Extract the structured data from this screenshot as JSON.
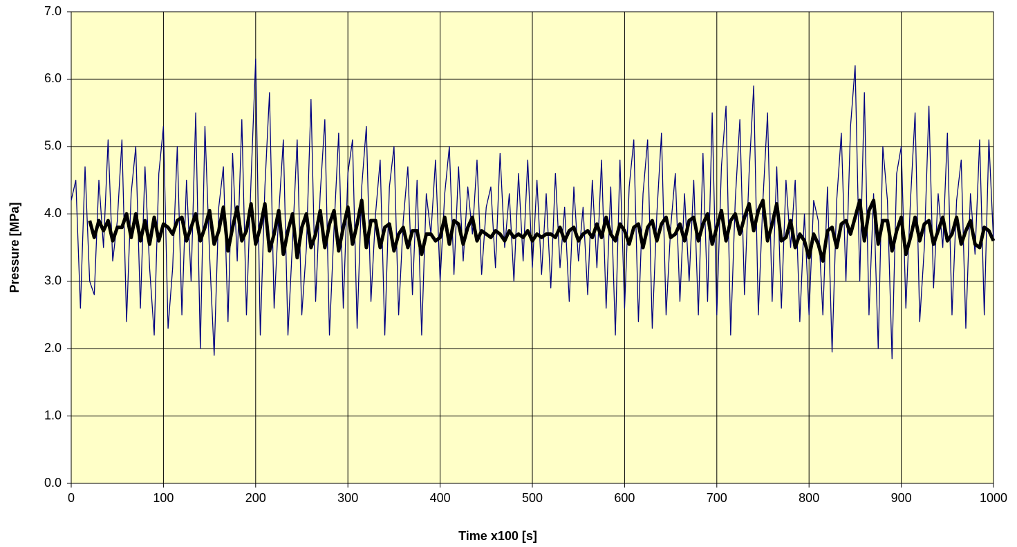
{
  "chart_data": {
    "type": "line",
    "x_label": "Time x100 [s]",
    "y_label": "Pressure [MPa]",
    "xlim": [
      0,
      1000
    ],
    "xticks": [
      0,
      100,
      200,
      300,
      400,
      500,
      600,
      700,
      800,
      900,
      1000
    ],
    "ylim": [
      0,
      7
    ],
    "yticks": [
      {
        "value": 0,
        "label": "0.0"
      },
      {
        "value": 1,
        "label": "1.0"
      },
      {
        "value": 2,
        "label": "2.0"
      },
      {
        "value": 3,
        "label": "3.0"
      },
      {
        "value": 4,
        "label": "4.0"
      },
      {
        "value": 5,
        "label": "5.0"
      },
      {
        "value": 6,
        "label": "6.0"
      },
      {
        "value": 7,
        "label": "7.0"
      }
    ],
    "grid": true,
    "background": "#ffffc8",
    "series": [
      {
        "color": "#000080",
        "width": 1.3,
        "x": [
          0,
          5,
          10,
          15,
          20,
          25,
          30,
          35,
          40,
          45,
          50,
          55,
          60,
          65,
          70,
          75,
          80,
          85,
          90,
          95,
          100,
          105,
          110,
          115,
          120,
          125,
          130,
          135,
          140,
          145,
          150,
          155,
          160,
          165,
          170,
          175,
          180,
          185,
          190,
          195,
          200,
          205,
          210,
          215,
          220,
          225,
          230,
          235,
          240,
          245,
          250,
          255,
          260,
          265,
          270,
          275,
          280,
          285,
          290,
          295,
          300,
          305,
          310,
          315,
          320,
          325,
          330,
          335,
          340,
          345,
          350,
          355,
          360,
          365,
          370,
          375,
          380,
          385,
          390,
          395,
          400,
          405,
          410,
          415,
          420,
          425,
          430,
          435,
          440,
          445,
          450,
          455,
          460,
          465,
          470,
          475,
          480,
          485,
          490,
          495,
          500,
          505,
          510,
          515,
          520,
          525,
          530,
          535,
          540,
          545,
          550,
          555,
          560,
          565,
          570,
          575,
          580,
          585,
          590,
          595,
          600,
          605,
          610,
          615,
          620,
          625,
          630,
          635,
          640,
          645,
          650,
          655,
          660,
          665,
          670,
          675,
          680,
          685,
          690,
          695,
          700,
          705,
          710,
          715,
          720,
          725,
          730,
          735,
          740,
          745,
          750,
          755,
          760,
          765,
          770,
          775,
          780,
          785,
          790,
          795,
          800,
          805,
          810,
          815,
          820,
          825,
          830,
          835,
          840,
          845,
          850,
          855,
          860,
          865,
          870,
          875,
          880,
          885,
          890,
          895,
          900,
          905,
          910,
          915,
          920,
          925,
          930,
          935,
          940,
          945,
          950,
          955,
          960,
          965,
          970,
          975,
          980,
          985,
          990,
          995,
          1000
        ],
        "values": [
          4.2,
          4.5,
          2.6,
          4.7,
          3.0,
          2.8,
          4.5,
          3.5,
          5.1,
          3.3,
          3.9,
          5.1,
          2.4,
          4.3,
          5.0,
          2.6,
          4.7,
          3.2,
          2.2,
          4.6,
          5.3,
          2.3,
          3.2,
          5.0,
          2.5,
          4.5,
          3.0,
          5.5,
          2.0,
          5.3,
          3.4,
          1.9,
          4.1,
          4.7,
          2.4,
          4.9,
          3.3,
          5.4,
          2.5,
          4.5,
          6.3,
          2.2,
          4.4,
          5.8,
          2.6,
          4.0,
          5.1,
          2.2,
          3.6,
          5.1,
          2.5,
          3.5,
          5.7,
          2.7,
          4.3,
          5.4,
          2.2,
          3.8,
          5.2,
          2.6,
          4.6,
          5.1,
          2.3,
          4.4,
          5.3,
          2.7,
          4.0,
          4.8,
          2.2,
          4.4,
          5.0,
          2.5,
          3.9,
          4.7,
          2.8,
          4.5,
          2.2,
          4.3,
          3.7,
          4.8,
          3.0,
          4.3,
          5.0,
          3.1,
          4.7,
          3.3,
          4.4,
          3.7,
          4.8,
          3.1,
          4.1,
          4.4,
          3.2,
          4.9,
          3.5,
          4.3,
          3.0,
          4.6,
          3.3,
          4.8,
          3.2,
          4.5,
          3.1,
          4.3,
          2.9,
          4.6,
          3.2,
          4.1,
          2.7,
          4.4,
          3.3,
          4.1,
          2.8,
          4.5,
          3.2,
          4.8,
          2.6,
          4.4,
          2.2,
          4.8,
          2.6,
          4.4,
          5.1,
          2.4,
          4.3,
          5.1,
          2.3,
          4.0,
          5.2,
          2.5,
          3.8,
          4.6,
          2.7,
          4.3,
          3.0,
          4.5,
          2.5,
          4.9,
          2.7,
          5.5,
          2.5,
          4.7,
          5.6,
          2.2,
          4.2,
          5.4,
          2.8,
          4.6,
          5.9,
          2.5,
          4.2,
          5.5,
          2.7,
          4.7,
          2.6,
          4.5,
          3.5,
          4.5,
          2.4,
          4.0,
          2.5,
          4.2,
          3.9,
          2.5,
          4.4,
          1.95,
          4.2,
          5.2,
          3.0,
          5.3,
          6.2,
          3.0,
          5.8,
          2.5,
          4.3,
          2.0,
          5.0,
          4.2,
          1.85,
          4.6,
          5.0,
          2.6,
          4.2,
          5.5,
          2.4,
          3.5,
          5.6,
          2.9,
          4.3,
          3.5,
          5.2,
          2.5,
          4.2,
          4.8,
          2.3,
          4.3,
          3.4,
          5.1,
          2.5,
          5.1,
          3.6
        ]
      },
      {
        "color": "#000000",
        "width": 5,
        "x": [
          20,
          25,
          30,
          35,
          40,
          45,
          50,
          55,
          60,
          65,
          70,
          75,
          80,
          85,
          90,
          95,
          100,
          105,
          110,
          115,
          120,
          125,
          130,
          135,
          140,
          145,
          150,
          155,
          160,
          165,
          170,
          175,
          180,
          185,
          190,
          195,
          200,
          205,
          210,
          215,
          220,
          225,
          230,
          235,
          240,
          245,
          250,
          255,
          260,
          265,
          270,
          275,
          280,
          285,
          290,
          295,
          300,
          305,
          310,
          315,
          320,
          325,
          330,
          335,
          340,
          345,
          350,
          355,
          360,
          365,
          370,
          375,
          380,
          385,
          390,
          395,
          400,
          405,
          410,
          415,
          420,
          425,
          430,
          435,
          440,
          445,
          450,
          455,
          460,
          465,
          470,
          475,
          480,
          485,
          490,
          495,
          500,
          505,
          510,
          515,
          520,
          525,
          530,
          535,
          540,
          545,
          550,
          555,
          560,
          565,
          570,
          575,
          580,
          585,
          590,
          595,
          600,
          605,
          610,
          615,
          620,
          625,
          630,
          635,
          640,
          645,
          650,
          655,
          660,
          665,
          670,
          675,
          680,
          685,
          690,
          695,
          700,
          705,
          710,
          715,
          720,
          725,
          730,
          735,
          740,
          745,
          750,
          755,
          760,
          765,
          770,
          775,
          780,
          785,
          790,
          795,
          800,
          805,
          810,
          815,
          820,
          825,
          830,
          835,
          840,
          845,
          850,
          855,
          860,
          865,
          870,
          875,
          880,
          885,
          890,
          895,
          900,
          905,
          910,
          915,
          920,
          925,
          930,
          935,
          940,
          945,
          950,
          955,
          960,
          965,
          970,
          975,
          980,
          985,
          990,
          995,
          1000
        ],
        "values": [
          3.9,
          3.65,
          3.9,
          3.75,
          3.9,
          3.6,
          3.8,
          3.8,
          4.0,
          3.65,
          4.0,
          3.6,
          3.9,
          3.55,
          3.95,
          3.6,
          3.85,
          3.8,
          3.7,
          3.9,
          3.95,
          3.6,
          3.8,
          4.0,
          3.6,
          3.8,
          4.05,
          3.55,
          3.75,
          4.1,
          3.45,
          3.8,
          4.1,
          3.6,
          3.75,
          4.15,
          3.55,
          3.8,
          4.15,
          3.45,
          3.7,
          4.05,
          3.4,
          3.75,
          4.0,
          3.35,
          3.8,
          4.0,
          3.5,
          3.7,
          4.05,
          3.5,
          3.85,
          4.05,
          3.45,
          3.8,
          4.1,
          3.55,
          3.85,
          4.2,
          3.5,
          3.9,
          3.9,
          3.5,
          3.8,
          3.85,
          3.45,
          3.7,
          3.8,
          3.5,
          3.75,
          3.75,
          3.4,
          3.7,
          3.7,
          3.6,
          3.65,
          3.95,
          3.55,
          3.9,
          3.85,
          3.55,
          3.8,
          3.95,
          3.6,
          3.75,
          3.7,
          3.65,
          3.75,
          3.7,
          3.6,
          3.75,
          3.65,
          3.7,
          3.65,
          3.75,
          3.6,
          3.7,
          3.65,
          3.7,
          3.7,
          3.65,
          3.8,
          3.6,
          3.75,
          3.8,
          3.6,
          3.7,
          3.75,
          3.65,
          3.85,
          3.65,
          3.95,
          3.7,
          3.6,
          3.85,
          3.75,
          3.55,
          3.8,
          3.85,
          3.5,
          3.8,
          3.9,
          3.6,
          3.85,
          3.95,
          3.65,
          3.7,
          3.85,
          3.6,
          3.9,
          3.95,
          3.6,
          3.85,
          4.0,
          3.55,
          3.8,
          4.05,
          3.6,
          3.9,
          4.0,
          3.7,
          3.95,
          4.15,
          3.75,
          4.05,
          4.2,
          3.6,
          3.85,
          4.15,
          3.6,
          3.65,
          3.9,
          3.5,
          3.7,
          3.6,
          3.35,
          3.7,
          3.55,
          3.3,
          3.75,
          3.8,
          3.5,
          3.85,
          3.9,
          3.7,
          3.95,
          4.2,
          3.6,
          4.05,
          4.2,
          3.55,
          3.9,
          3.9,
          3.45,
          3.75,
          3.95,
          3.4,
          3.65,
          3.95,
          3.6,
          3.85,
          3.9,
          3.55,
          3.75,
          3.95,
          3.6,
          3.7,
          3.95,
          3.55,
          3.75,
          3.9,
          3.55,
          3.5,
          3.8,
          3.75,
          3.6
        ]
      }
    ]
  }
}
